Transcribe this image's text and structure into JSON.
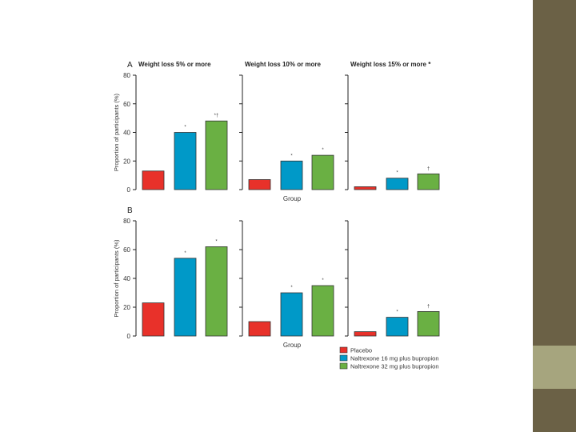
{
  "colors": {
    "placebo": "#e8312a",
    "nb16": "#0099c8",
    "nb32": "#6ab043",
    "sidebar": "#6b6146",
    "sidebar_accent": "#a6a57e"
  },
  "legend": {
    "items": [
      {
        "label": "Placebo",
        "color": "#e8312a"
      },
      {
        "label": "Naltrexone 16 mg plus bupropion",
        "color": "#0099c8"
      },
      {
        "label": "Naltrexone 32 mg plus bupropion",
        "color": "#6ab043"
      }
    ]
  },
  "chart_data": [
    {
      "type": "bar",
      "panel": "A",
      "title": "Weight loss 5% or more",
      "categories": [
        "Placebo",
        "Naltrexone 16 mg plus bupropion",
        "Naltrexone 32 mg plus bupropion"
      ],
      "values": [
        13,
        40,
        48
      ],
      "markers": [
        "",
        "*",
        "*†"
      ],
      "ylabel": "Proportion of participants (%)",
      "xlabel": "",
      "ylim": [
        0,
        80
      ],
      "yticks": [
        0,
        20,
        40,
        60,
        80
      ]
    },
    {
      "type": "bar",
      "panel": "",
      "title": "Weight loss 10% or more",
      "categories": [
        "Placebo",
        "Naltrexone 16 mg plus bupropion",
        "Naltrexone 32 mg plus bupropion"
      ],
      "values": [
        7,
        20,
        24
      ],
      "markers": [
        "",
        "*",
        "*"
      ],
      "ylabel": "",
      "xlabel": "Group",
      "ylim": [
        0,
        80
      ],
      "yticks": []
    },
    {
      "type": "bar",
      "panel": "",
      "title": "Weight loss 15% or more *",
      "categories": [
        "Placebo",
        "Naltrexone 16 mg plus bupropion",
        "Naltrexone 32 mg plus bupropion"
      ],
      "values": [
        2,
        8,
        11
      ],
      "markers": [
        "",
        "*",
        "†"
      ],
      "ylabel": "",
      "xlabel": "",
      "ylim": [
        0,
        80
      ],
      "yticks": []
    },
    {
      "type": "bar",
      "panel": "B",
      "title": "",
      "categories": [
        "Placebo",
        "Naltrexone 16 mg plus bupropion",
        "Naltrexone 32 mg plus bupropion"
      ],
      "values": [
        23,
        54,
        62
      ],
      "markers": [
        "",
        "*",
        "*"
      ],
      "ylabel": "Proportion of participants (%)",
      "xlabel": "",
      "ylim": [
        0,
        80
      ],
      "yticks": [
        0,
        20,
        40,
        60,
        80
      ]
    },
    {
      "type": "bar",
      "panel": "",
      "title": "",
      "categories": [
        "Placebo",
        "Naltrexone 16 mg plus bupropion",
        "Naltrexone 32 mg plus bupropion"
      ],
      "values": [
        10,
        30,
        35
      ],
      "markers": [
        "",
        "*",
        "*"
      ],
      "ylabel": "",
      "xlabel": "Group",
      "ylim": [
        0,
        80
      ],
      "yticks": []
    },
    {
      "type": "bar",
      "panel": "",
      "title": "",
      "categories": [
        "Placebo",
        "Naltrexone 16 mg plus bupropion",
        "Naltrexone 32 mg plus bupropion"
      ],
      "values": [
        3,
        13,
        17
      ],
      "markers": [
        "",
        "*",
        "†"
      ],
      "ylabel": "",
      "xlabel": "",
      "ylim": [
        0,
        80
      ],
      "yticks": []
    }
  ]
}
